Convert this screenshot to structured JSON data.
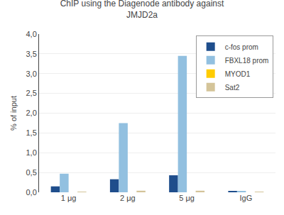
{
  "chart_data": {
    "type": "bar",
    "title": "ChIP using the Diagenode antibody against\nJMJD2a",
    "ylabel": "% of input",
    "categories": [
      "1 μg",
      "2 μg",
      "5 μg",
      "IgG"
    ],
    "series": [
      {
        "name": "c-fos prom",
        "color": "#1F4E8C",
        "values": [
          0.15,
          0.33,
          0.43,
          0.02
        ]
      },
      {
        "name": "FBXL18 prom",
        "color": "#92C0E0",
        "values": [
          0.47,
          1.75,
          3.45,
          0.02
        ]
      },
      {
        "name": "MYOD1",
        "color": "#FFCC00",
        "values": [
          0.0,
          0.0,
          0.0,
          0.0
        ]
      },
      {
        "name": "Sat2",
        "color": "#D4C499",
        "values": [
          0.01,
          0.04,
          0.04,
          0.01
        ]
      }
    ],
    "ylim": [
      0,
      4.0
    ],
    "yticks": [
      {
        "value": 0.0,
        "label": "0,0"
      },
      {
        "value": 0.5,
        "label": "0,5"
      },
      {
        "value": 1.0,
        "label": "1,0"
      },
      {
        "value": 1.5,
        "label": "1,5"
      },
      {
        "value": 2.0,
        "label": "2,0"
      },
      {
        "value": 2.5,
        "label": "2,5"
      },
      {
        "value": 3.0,
        "label": "3,0"
      },
      {
        "value": 3.5,
        "label": "3,5"
      },
      {
        "value": 4.0,
        "label": "4,0"
      }
    ],
    "grid": true,
    "legend": "upper right"
  }
}
